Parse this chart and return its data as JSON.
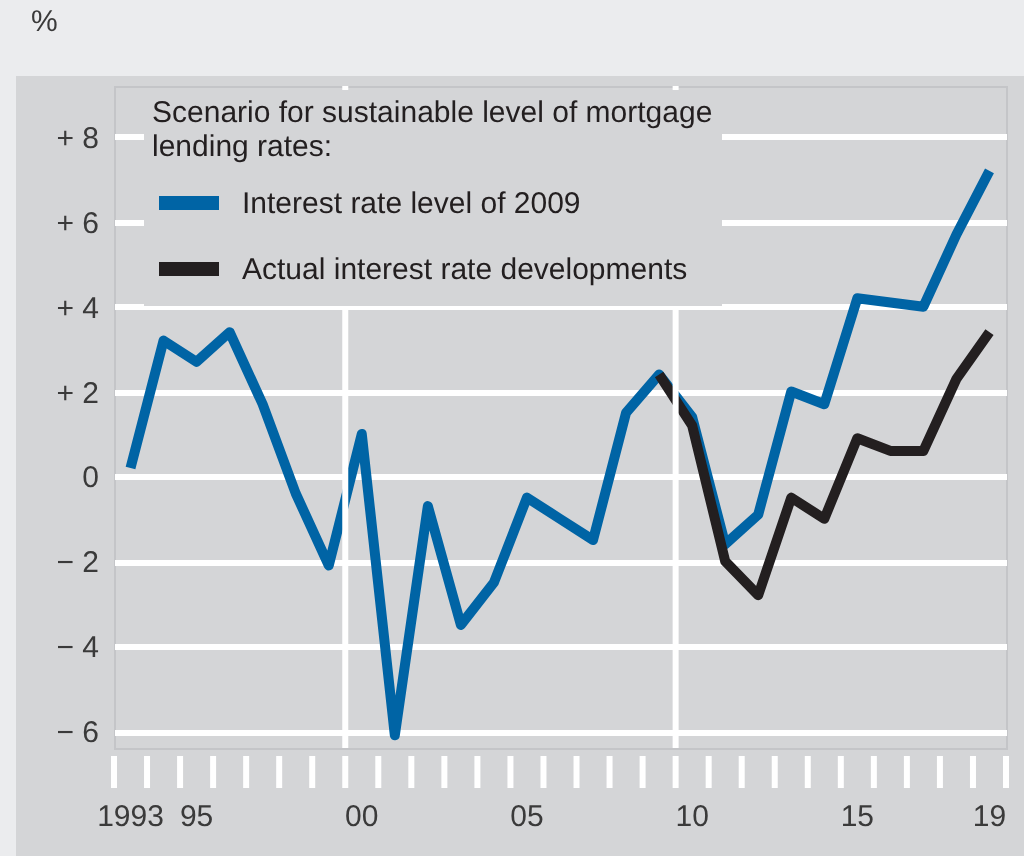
{
  "chart_data": {
    "type": "line",
    "ylabel": "%",
    "legend_title": "Scenario for sustainable level of mortgage lending rates:",
    "legend": "top left",
    "grid": "y",
    "line_style": "solid",
    "x": [
      1993,
      1994,
      1995,
      1996,
      1997,
      1998,
      1999,
      2000,
      2001,
      2002,
      2003,
      2004,
      2005,
      2006,
      2007,
      2008,
      2009,
      2010,
      2011,
      2012,
      2013,
      2014,
      2015,
      2016,
      2017,
      2018,
      2019
    ],
    "series": [
      {
        "name": "Interest rate level of 2009",
        "color": "#0064a5",
        "values": [
          0.2,
          3.2,
          2.7,
          3.4,
          1.7,
          -0.4,
          -2.1,
          1.0,
          -6.1,
          -0.7,
          -3.5,
          -2.5,
          -0.5,
          -1.0,
          -1.5,
          1.5,
          2.4,
          1.4,
          -1.6,
          -0.9,
          2.0,
          1.7,
          4.2,
          4.1,
          4.0,
          5.7,
          7.2
        ]
      },
      {
        "name": "Actual interest rate developments",
        "color": "#231f20",
        "x": [
          2009,
          2010,
          2011,
          2012,
          2013,
          2014,
          2015,
          2016,
          2017,
          2018,
          2019
        ],
        "values": [
          2.4,
          1.2,
          -2.0,
          -2.8,
          -0.5,
          -1.0,
          0.9,
          0.6,
          0.6,
          2.3,
          3.4
        ]
      }
    ],
    "xlim": [
      1992.5,
      2019.5
    ],
    "xticks": [
      {
        "value": 1992.5,
        "label": null
      },
      1993,
      {
        "value": 1993.5,
        "label": null
      },
      {
        "value": 1994.5,
        "label": null
      },
      {
        "value": 1995,
        "label": "95"
      },
      {
        "value": 1995.5,
        "label": null
      },
      {
        "value": 1996.5,
        "label": null
      },
      {
        "value": 1997.5,
        "label": null
      },
      {
        "value": 1998.5,
        "label": null
      },
      {
        "value": 1999.5,
        "label": null
      },
      {
        "value": 2000,
        "label": "00"
      },
      {
        "value": 2000.5,
        "label": null
      },
      {
        "value": 2001.5,
        "label": null
      },
      {
        "value": 2002.5,
        "label": null
      },
      {
        "value": 2003.5,
        "label": null
      },
      {
        "value": 2004.5,
        "label": null
      },
      {
        "value": 2005,
        "label": "05"
      },
      {
        "value": 2005.5,
        "label": null
      },
      {
        "value": 2006.5,
        "label": null
      },
      {
        "value": 2007.5,
        "label": null
      },
      {
        "value": 2008.5,
        "label": null
      },
      {
        "value": 2009.5,
        "label": null
      },
      {
        "value": 2010,
        "label": "10"
      },
      {
        "value": 2010.5,
        "label": null
      },
      {
        "value": 2011.5,
        "label": null
      },
      {
        "value": 2012.5,
        "label": null
      },
      {
        "value": 2013.5,
        "label": null
      },
      {
        "value": 2014.5,
        "label": null
      },
      {
        "value": 2015,
        "label": "15"
      },
      {
        "value": 2015.5,
        "label": null
      },
      {
        "value": 2016.5,
        "label": null
      },
      {
        "value": 2017.5,
        "label": null
      },
      {
        "value": 2018.5,
        "label": null
      },
      {
        "value": 2019,
        "label": "19"
      },
      {
        "value": 2019.5,
        "label": null
      }
    ],
    "ylim": [
      -6.4,
      9.2
    ],
    "yticks": [
      {
        "value": -6,
        "label": "− 6"
      },
      {
        "value": -4,
        "label": "− 4"
      },
      {
        "value": -2,
        "label": "− 2"
      },
      0,
      {
        "value": 2,
        "label": "+ 2"
      },
      {
        "value": 4,
        "label": "+ 4"
      },
      {
        "value": 6,
        "label": "+ 6"
      },
      {
        "value": 8,
        "label": "+ 8"
      }
    ],
    "ref_lines": [
      {
        "axis": "x",
        "value": 1999.5,
        "color": "#ffffff"
      },
      {
        "axis": "x",
        "value": 2009.5,
        "color": "#ffffff"
      }
    ]
  }
}
